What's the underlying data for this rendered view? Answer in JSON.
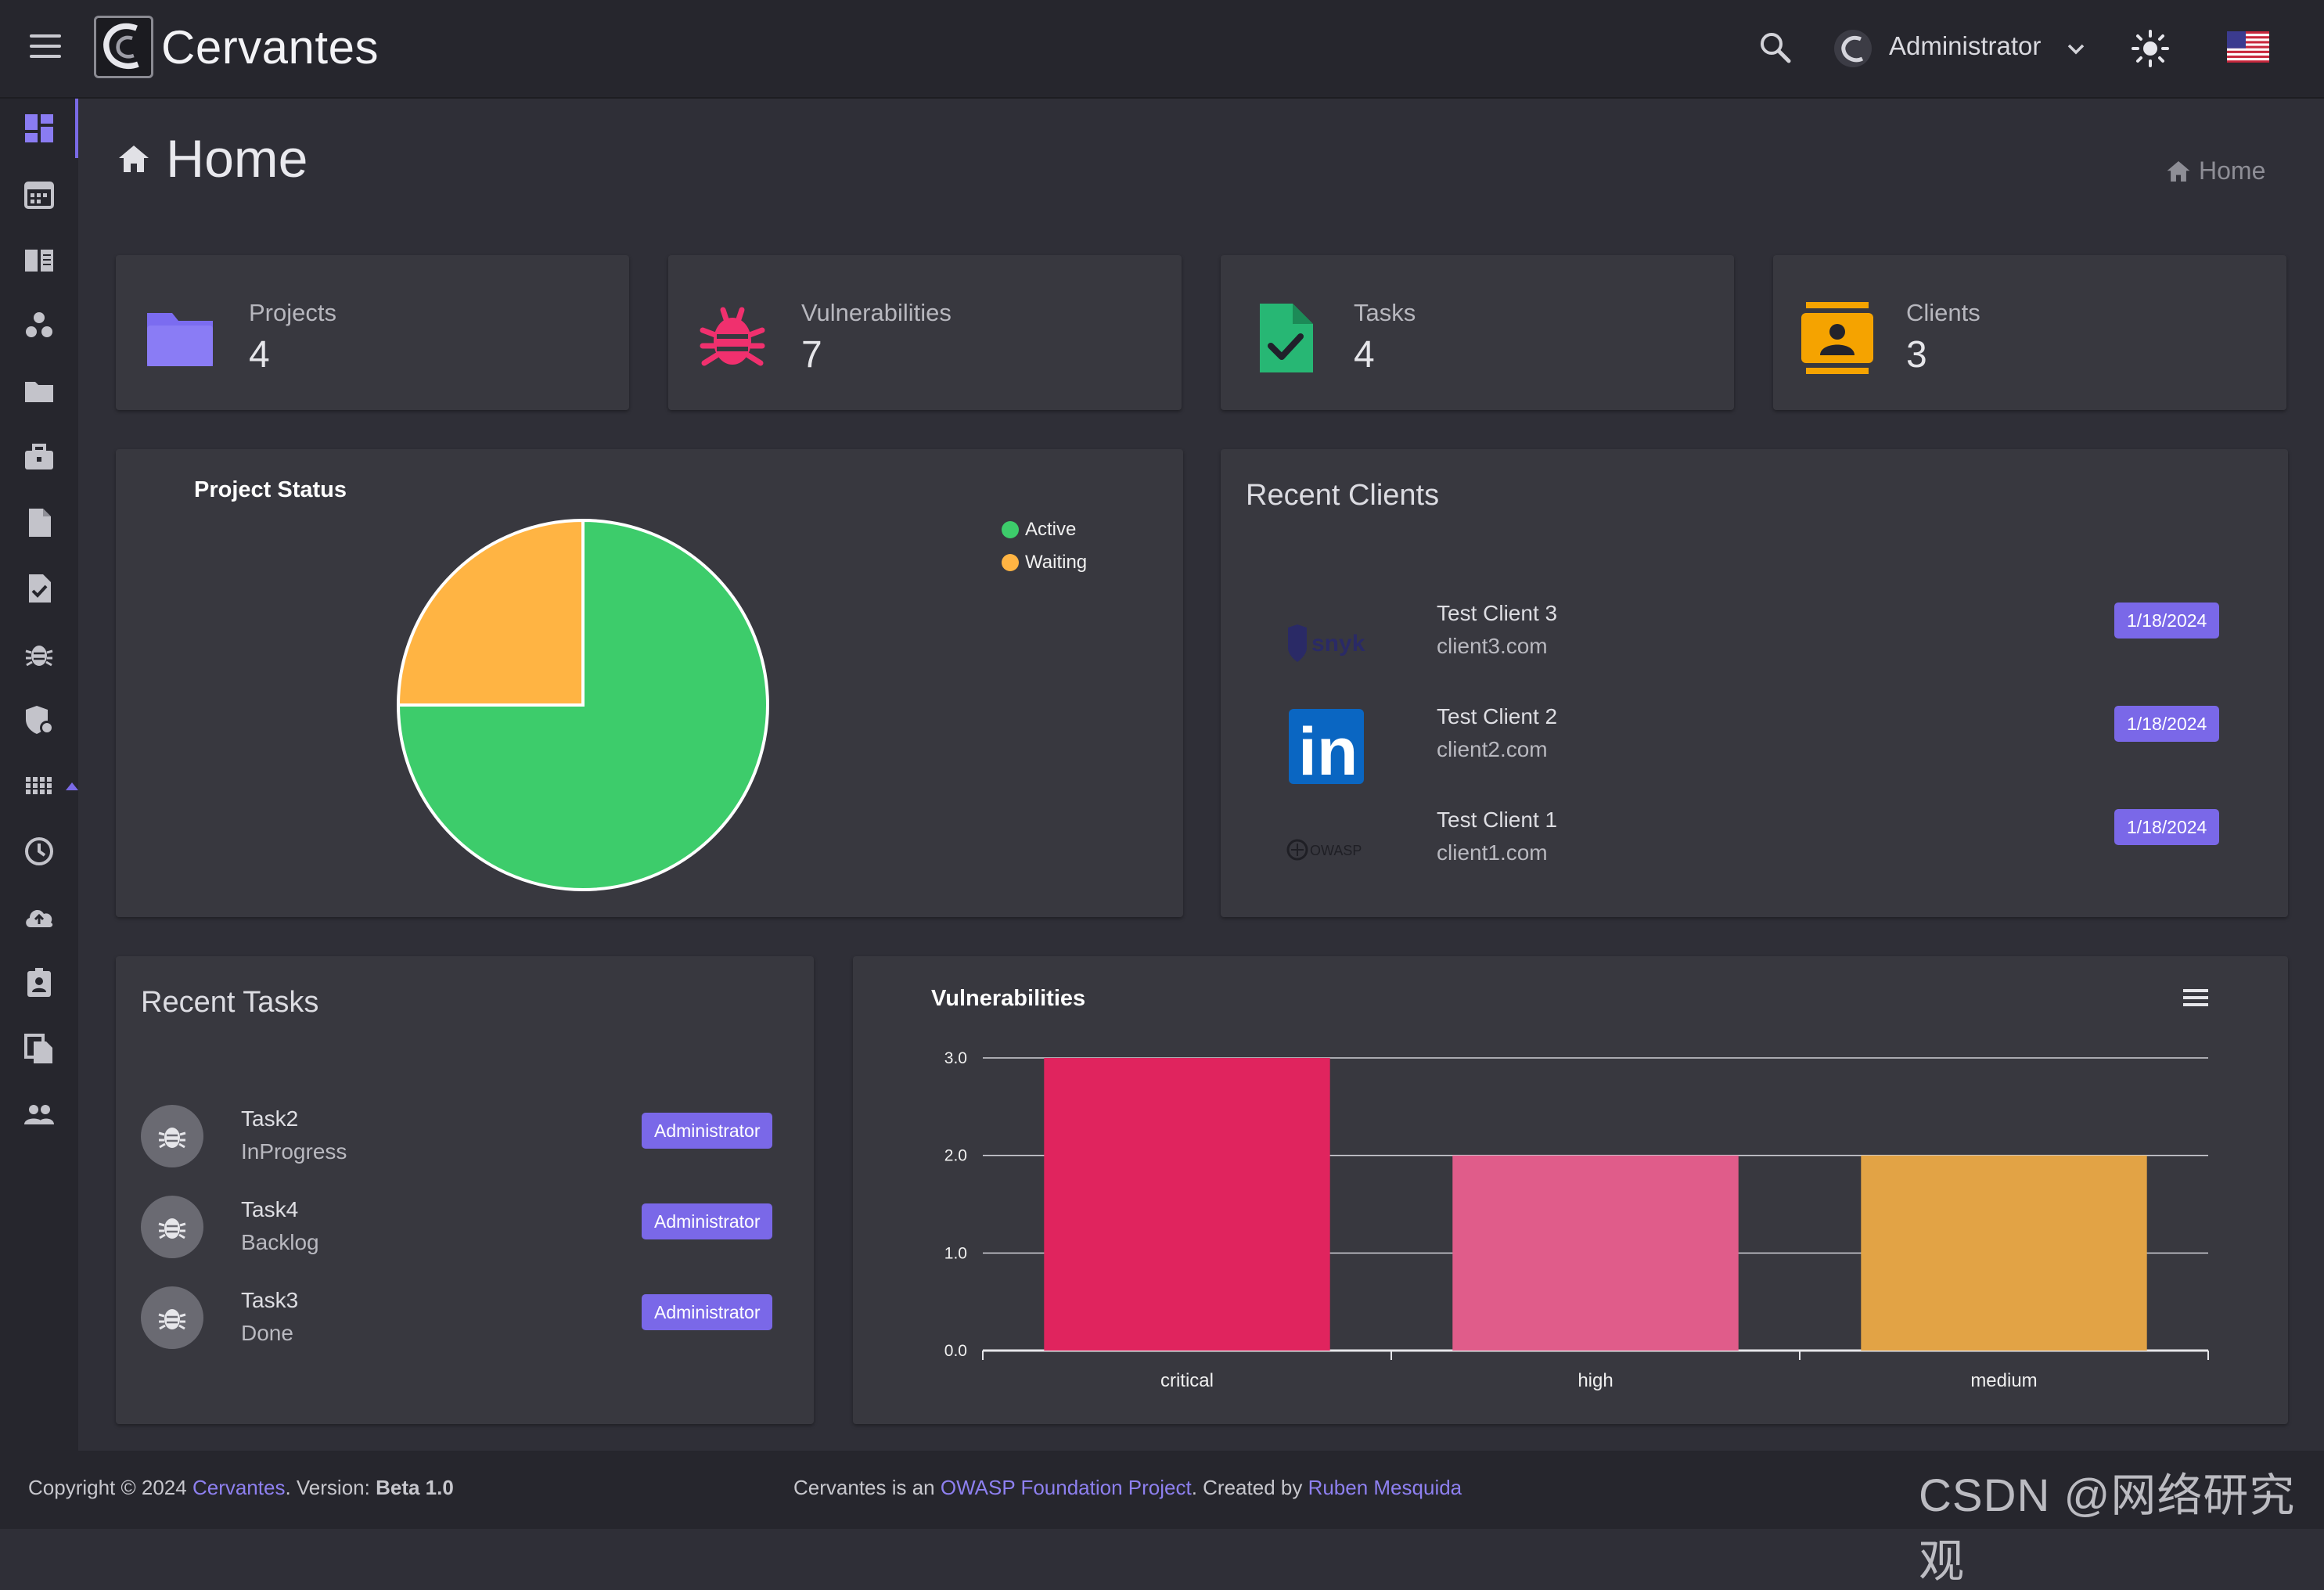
{
  "app": {
    "brand": "Cervantes",
    "user": "Administrator"
  },
  "page": {
    "title": "Home",
    "breadcrumb": "Home"
  },
  "stats": [
    {
      "label": "Projects",
      "value": "4",
      "icon": "folder-icon",
      "color": "#7b6cf0"
    },
    {
      "label": "Vulnerabilities",
      "value": "7",
      "icon": "bug-icon",
      "color": "#f0306e"
    },
    {
      "label": "Tasks",
      "value": "4",
      "icon": "file-check-icon",
      "color": "#27b774"
    },
    {
      "label": "Clients",
      "value": "3",
      "icon": "contact-card-icon",
      "color": "#f5a300"
    }
  ],
  "project_status": {
    "title": "Project Status",
    "legend": [
      {
        "label": "Active",
        "color": "#3dcc6b"
      },
      {
        "label": "Waiting",
        "color": "#ffb443"
      }
    ]
  },
  "recent_clients": {
    "title": "Recent Clients",
    "items": [
      {
        "name": "Test Client 3",
        "domain": "client3.com",
        "date": "1/18/2024",
        "logo": "snyk",
        "logo_text": "snyk"
      },
      {
        "name": "Test Client 2",
        "domain": "client2.com",
        "date": "1/18/2024",
        "logo": "linkedin",
        "logo_text": "in"
      },
      {
        "name": "Test Client 1",
        "domain": "client1.com",
        "date": "1/18/2024",
        "logo": "owasp",
        "logo_text": "OWASP"
      }
    ]
  },
  "recent_tasks": {
    "title": "Recent Tasks",
    "items": [
      {
        "name": "Task2",
        "status": "InProgress",
        "assignee": "Administrator"
      },
      {
        "name": "Task4",
        "status": "Backlog",
        "assignee": "Administrator"
      },
      {
        "name": "Task3",
        "status": "Done",
        "assignee": "Administrator"
      }
    ]
  },
  "vulnerabilities_chart_title": "Vulnerabilities",
  "chart_data": [
    {
      "type": "pie",
      "title": "Project Status",
      "categories": [
        "Active",
        "Waiting"
      ],
      "values": [
        3,
        1
      ],
      "colors": [
        "#3dcc6b",
        "#ffb443"
      ],
      "legend": "top-right"
    },
    {
      "type": "bar",
      "title": "Vulnerabilities",
      "categories": [
        "critical",
        "high",
        "medium"
      ],
      "values": [
        3,
        2,
        2
      ],
      "colors": [
        "#e0245e",
        "#e05c8a",
        "#e2a345"
      ],
      "ylim": [
        0,
        3
      ],
      "yticks": [
        "0.0",
        "1.0",
        "2.0",
        "3.0"
      ],
      "grid": true
    }
  ],
  "footer": {
    "copyright": "Copyright © 2024 ",
    "brand_link": "Cervantes",
    "version_prefix": ". Version: ",
    "version": "Beta 1.0",
    "owasp_prefix": "Cervantes is an ",
    "owasp_link": "OWASP Foundation Project",
    "created_prefix": ". Created by ",
    "author_link": "Ruben Mesquida"
  },
  "watermark": "CSDN @网络研究观"
}
